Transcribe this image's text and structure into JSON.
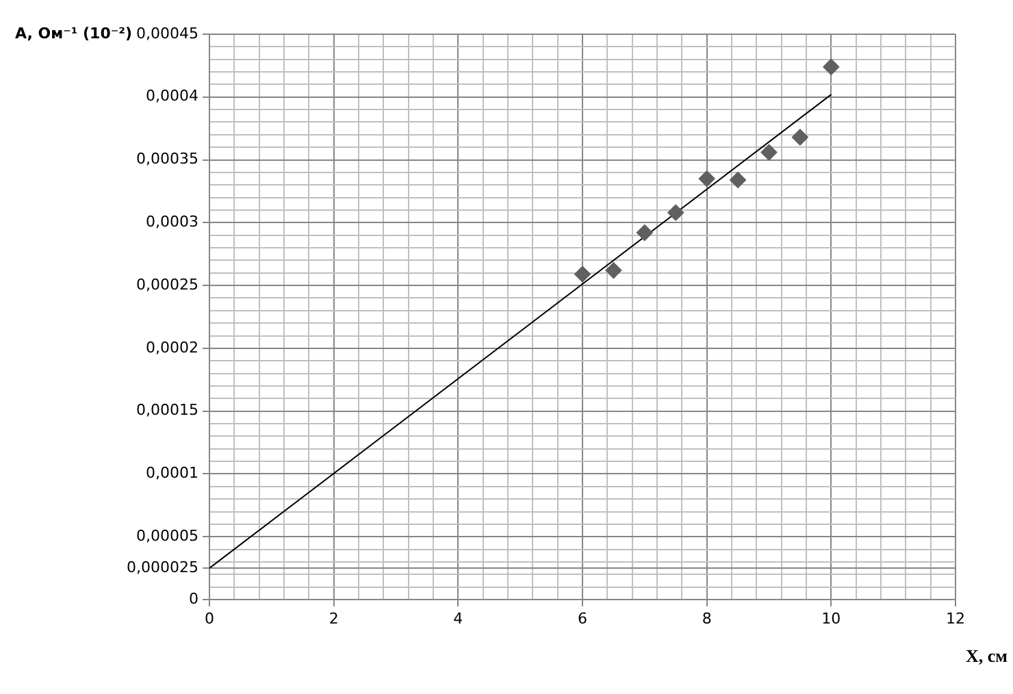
{
  "chart_data": {
    "type": "scatter",
    "xlabel": "X, см",
    "ylabel": "A, Ом⁻¹ (10⁻²)",
    "xlim": [
      0,
      12
    ],
    "xticks": [
      0,
      {
        "value": 0.4,
        "label": null
      },
      {
        "value": 0.8,
        "label": null
      },
      {
        "value": 1.2,
        "label": null
      },
      {
        "value": 1.6,
        "label": null
      },
      2,
      {
        "value": 2.4,
        "label": null
      },
      {
        "value": 2.8,
        "label": null
      },
      {
        "value": 3.2,
        "label": null
      },
      {
        "value": 3.6,
        "label": null
      },
      4,
      {
        "value": 4.4,
        "label": null
      },
      {
        "value": 4.8,
        "label": null
      },
      {
        "value": 5.2,
        "label": null
      },
      {
        "value": 5.6,
        "label": null
      },
      6,
      {
        "value": 6.4,
        "label": null
      },
      {
        "value": 6.8,
        "label": null
      },
      {
        "value": 7.2,
        "label": null
      },
      {
        "value": 7.6,
        "label": null
      },
      8,
      {
        "value": 8.4,
        "label": null
      },
      {
        "value": 8.8,
        "label": null
      },
      {
        "value": 9.2,
        "label": null
      },
      {
        "value": 9.6,
        "label": null
      },
      10,
      {
        "value": 10.4,
        "label": null
      },
      {
        "value": 10.8,
        "label": null
      },
      {
        "value": 11.2,
        "label": null
      },
      {
        "value": 11.6,
        "label": null
      },
      12
    ],
    "ylim": [
      0,
      0.00045
    ],
    "yticks": [
      {
        "value": 0,
        "label": "0"
      },
      {
        "value": 1e-05,
        "label": null
      },
      {
        "value": 2e-05,
        "label": null
      },
      {
        "value": 2.5e-05,
        "label": "0,000025"
      },
      {
        "value": 3e-05,
        "label": null
      },
      {
        "value": 4e-05,
        "label": null
      },
      {
        "value": 5e-05,
        "label": "0,00005"
      },
      {
        "value": 6e-05,
        "label": null
      },
      {
        "value": 7e-05,
        "label": null
      },
      {
        "value": 8e-05,
        "label": null
      },
      {
        "value": 9e-05,
        "label": null
      },
      {
        "value": 0.0001,
        "label": "0,0001"
      },
      {
        "value": 0.00011,
        "label": null
      },
      {
        "value": 0.00012,
        "label": null
      },
      {
        "value": 0.00013,
        "label": null
      },
      {
        "value": 0.00014,
        "label": null
      },
      {
        "value": 0.00015,
        "label": "0,00015"
      },
      {
        "value": 0.00016,
        "label": null
      },
      {
        "value": 0.00017,
        "label": null
      },
      {
        "value": 0.00018,
        "label": null
      },
      {
        "value": 0.00019,
        "label": null
      },
      {
        "value": 0.0002,
        "label": "0,0002"
      },
      {
        "value": 0.00021,
        "label": null
      },
      {
        "value": 0.00022,
        "label": null
      },
      {
        "value": 0.00023,
        "label": null
      },
      {
        "value": 0.00024,
        "label": null
      },
      {
        "value": 0.00025,
        "label": "0,00025"
      },
      {
        "value": 0.00026,
        "label": null
      },
      {
        "value": 0.00027,
        "label": null
      },
      {
        "value": 0.00028,
        "label": null
      },
      {
        "value": 0.00029,
        "label": null
      },
      {
        "value": 0.0003,
        "label": "0,0003"
      },
      {
        "value": 0.00031,
        "label": null
      },
      {
        "value": 0.00032,
        "label": null
      },
      {
        "value": 0.00033,
        "label": null
      },
      {
        "value": 0.00034,
        "label": null
      },
      {
        "value": 0.00035,
        "label": "0,00035"
      },
      {
        "value": 0.00036,
        "label": null
      },
      {
        "value": 0.00037,
        "label": null
      },
      {
        "value": 0.00038,
        "label": null
      },
      {
        "value": 0.00039,
        "label": null
      },
      {
        "value": 0.0004,
        "label": "0,0004"
      },
      {
        "value": 0.00041,
        "label": null
      },
      {
        "value": 0.00042,
        "label": null
      },
      {
        "value": 0.00043,
        "label": null
      },
      {
        "value": 0.00044,
        "label": null
      },
      {
        "value": 0.00045,
        "label": "0,00045"
      }
    ],
    "grid": true,
    "legend": false,
    "series": [
      {
        "color": "#606060",
        "marker": "diamond",
        "x": [
          6,
          6.5,
          7,
          7.5,
          8,
          8.5,
          9,
          9.5,
          10
        ],
        "values": [
          0.000259,
          0.000262,
          0.000292,
          0.000308,
          0.000335,
          0.000334,
          0.000356,
          0.000368,
          0.000424
        ]
      },
      {
        "type": "line",
        "color": "#000000",
        "marker": "none",
        "line_style": "solid",
        "x": [
          0,
          10
        ],
        "values": [
          2.5e-05,
          0.000402
        ]
      }
    ]
  }
}
